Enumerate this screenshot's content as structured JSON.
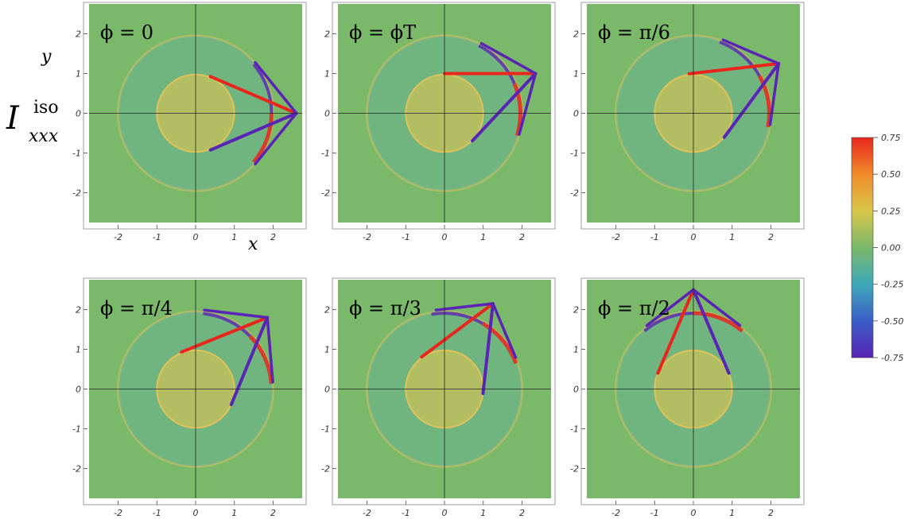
{
  "colors": {
    "background": "#7ab86a",
    "ring_neg": "#5fb0a8",
    "ring_pos": "#e0c25a",
    "hot": "#e8261e",
    "cold": "#5a24b4"
  },
  "figure": {
    "ylabel_main": "I",
    "ylabel_sup": "iso",
    "ylabel_sub": "xxx",
    "xvar": "x",
    "yvar": "y"
  },
  "chart_data": {
    "type": "heatmap",
    "xlim": [
      -2.75,
      2.75
    ],
    "ylim": [
      -2.75,
      2.75
    ],
    "x_ticks": [
      "-2",
      "-1",
      "0",
      "1",
      "2"
    ],
    "y_ticks": [
      "2",
      "1",
      "0",
      "-1",
      "-2"
    ],
    "x_tick_values": [
      -2,
      -1,
      0,
      1,
      2
    ],
    "y_tick_values": [
      2,
      1,
      0,
      -1,
      -2
    ],
    "colorbar": {
      "min": -0.75,
      "max": 0.75,
      "ticks": [
        "0.75",
        "0.50",
        "0.25",
        "0.00",
        "-0.25",
        "-0.50",
        "-0.75"
      ],
      "tick_values": [
        0.75,
        0.5,
        0.25,
        0.0,
        -0.25,
        -0.5,
        -0.75
      ],
      "gradient": [
        "#e8261e",
        "#f08a2a",
        "#d8c64a",
        "#7ab86a",
        "#3fa8b8",
        "#3a5ec8",
        "#5a24b4"
      ]
    },
    "panels": [
      {
        "title": "ϕ = 0",
        "source": [
          2.6,
          0.0
        ]
      },
      {
        "title": "ϕ = ϕT",
        "source": [
          2.35,
          1.0
        ]
      },
      {
        "title": "ϕ = π/6",
        "source": [
          2.2,
          1.25
        ]
      },
      {
        "title": "ϕ = π/4",
        "source": [
          1.85,
          1.8
        ]
      },
      {
        "title": "ϕ = π/3",
        "source": [
          1.25,
          2.15
        ]
      },
      {
        "title": "ϕ = π/2",
        "source": [
          0.0,
          2.5
        ]
      }
    ]
  }
}
